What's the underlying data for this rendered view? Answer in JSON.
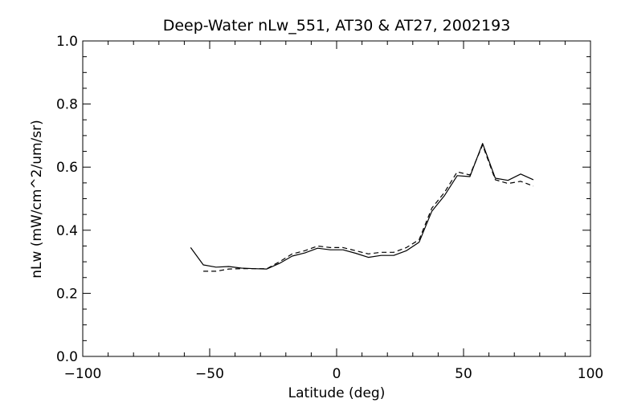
{
  "chart_data": {
    "type": "line",
    "title": "Deep-Water nLw_551, AT30 & AT27, 2002193",
    "xlabel": "Latitude (deg)",
    "ylabel": "nLw (mW/cm^2/um/sr)",
    "xlim": [
      -100,
      100
    ],
    "ylim": [
      0.0,
      1.0
    ],
    "xticks": [
      -100,
      -50,
      0,
      50,
      100
    ],
    "yticks": [
      0.0,
      0.2,
      0.4,
      0.6,
      0.8,
      1.0
    ],
    "xtick_labels": [
      "−100",
      "−50",
      "0",
      "50",
      "100"
    ],
    "ytick_labels": [
      "0.0",
      "0.2",
      "0.4",
      "0.6",
      "0.8",
      "1.0"
    ],
    "grid": false,
    "series": [
      {
        "style": "solid",
        "color": "#000000",
        "x": [
          -57.5,
          -52.5,
          -47.5,
          -42.5,
          -37.5,
          -32.5,
          -27.5,
          -22.5,
          -17.5,
          -12.5,
          -7.5,
          -2.5,
          2.5,
          7.5,
          12.5,
          17.5,
          22.5,
          27.5,
          32.5,
          37.5,
          42.5,
          47.5,
          52.5,
          57.5,
          62.5,
          67.5,
          72.5,
          77.5
        ],
        "y": [
          0.345,
          0.29,
          0.283,
          0.285,
          0.28,
          0.278,
          0.277,
          0.295,
          0.318,
          0.328,
          0.343,
          0.338,
          0.338,
          0.327,
          0.314,
          0.32,
          0.32,
          0.335,
          0.362,
          0.46,
          0.51,
          0.573,
          0.57,
          0.675,
          0.565,
          0.558,
          0.578,
          0.56
        ]
      },
      {
        "style": "dashed",
        "color": "#000000",
        "x": [
          -52.5,
          -47.5,
          -42.5,
          -37.5,
          -32.5,
          -27.5,
          -22.5,
          -17.5,
          -12.5,
          -7.5,
          -2.5,
          2.5,
          7.5,
          12.5,
          17.5,
          22.5,
          27.5,
          32.5,
          37.5,
          42.5,
          47.5,
          52.5,
          57.5,
          62.5,
          67.5,
          72.5,
          77.5
        ],
        "y": [
          0.27,
          0.27,
          0.277,
          0.278,
          0.278,
          0.278,
          0.3,
          0.325,
          0.335,
          0.35,
          0.345,
          0.345,
          0.335,
          0.325,
          0.33,
          0.33,
          0.345,
          0.37,
          0.47,
          0.52,
          0.585,
          0.575,
          0.67,
          0.56,
          0.548,
          0.555,
          0.54
        ]
      }
    ]
  }
}
